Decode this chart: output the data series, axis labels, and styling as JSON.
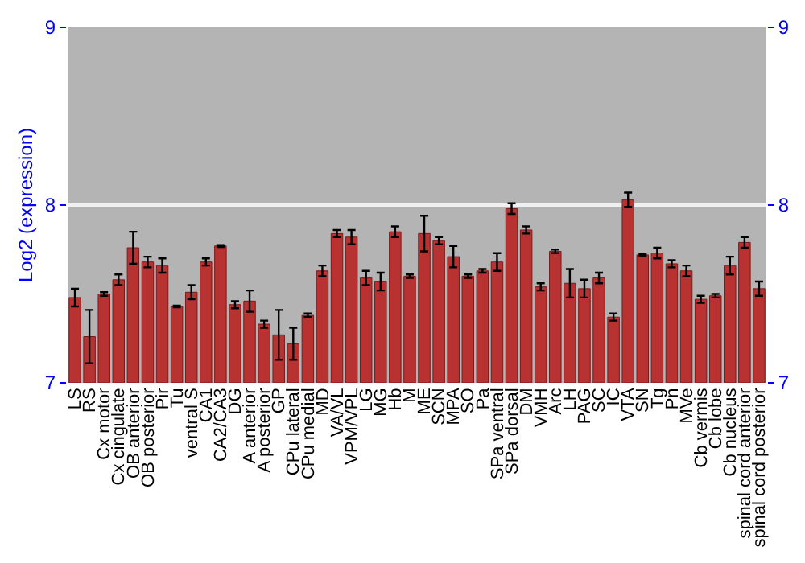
{
  "chart_data": {
    "type": "bar",
    "ylabel": "Log2 (expression)",
    "categories": [
      "LS",
      "RS",
      "Cx motor",
      "Cx cingulate",
      "OB anterior",
      "OB posterior",
      "Pir",
      "Tu",
      "ventral S",
      "CA1",
      "CA2/CA3",
      "DG",
      "A anterior",
      "A posterior",
      "GP",
      "CPu lateral",
      "CPu medial",
      "MD",
      "VA/VL",
      "VPM/VPL",
      "LG",
      "MG",
      "Hb",
      "M",
      "ME",
      "SCN",
      "MPA",
      "SO",
      "Pa",
      "SPa ventral",
      "SPa dorsal",
      "DM",
      "VMH",
      "Arc",
      "LH",
      "PAG",
      "SC",
      "IC",
      "VTA",
      "SN",
      "Tg",
      "Pn",
      "MVe",
      "Cb vermis",
      "Cb lobe",
      "Cb nucleus",
      "spinal cord anterior",
      "spinal cord posterior"
    ],
    "series": [
      {
        "color": "#b83232",
        "values": [
          7.48,
          7.26,
          7.5,
          7.58,
          7.76,
          7.68,
          7.66,
          7.43,
          7.51,
          7.68,
          7.77,
          7.44,
          7.46,
          7.33,
          7.27,
          7.22,
          7.38,
          7.63,
          7.84,
          7.82,
          7.59,
          7.57,
          7.85,
          7.6,
          7.84,
          7.8,
          7.71,
          7.6,
          7.63,
          7.68,
          7.98,
          7.86,
          7.54,
          7.74,
          7.56,
          7.53,
          7.59,
          7.37,
          8.03,
          7.72,
          7.73,
          7.67,
          7.63,
          7.47,
          7.49,
          7.66,
          7.79,
          7.53
        ],
        "errors": [
          0.05,
          0.15,
          0.01,
          0.03,
          0.09,
          0.03,
          0.04,
          0.005,
          0.04,
          0.02,
          0.005,
          0.02,
          0.06,
          0.02,
          0.14,
          0.09,
          0.01,
          0.03,
          0.02,
          0.04,
          0.04,
          0.05,
          0.03,
          0.01,
          0.1,
          0.02,
          0.06,
          0.01,
          0.01,
          0.05,
          0.03,
          0.02,
          0.02,
          0.01,
          0.08,
          0.05,
          0.03,
          0.02,
          0.04,
          0.005,
          0.03,
          0.02,
          0.03,
          0.02,
          0.01,
          0.05,
          0.03,
          0.04
        ]
      }
    ],
    "ylim": [
      7,
      9
    ],
    "yticks": [
      7,
      8,
      9
    ],
    "y2lim": [
      7,
      9
    ],
    "y2ticks": [
      7,
      8,
      9
    ],
    "grid": "y"
  }
}
